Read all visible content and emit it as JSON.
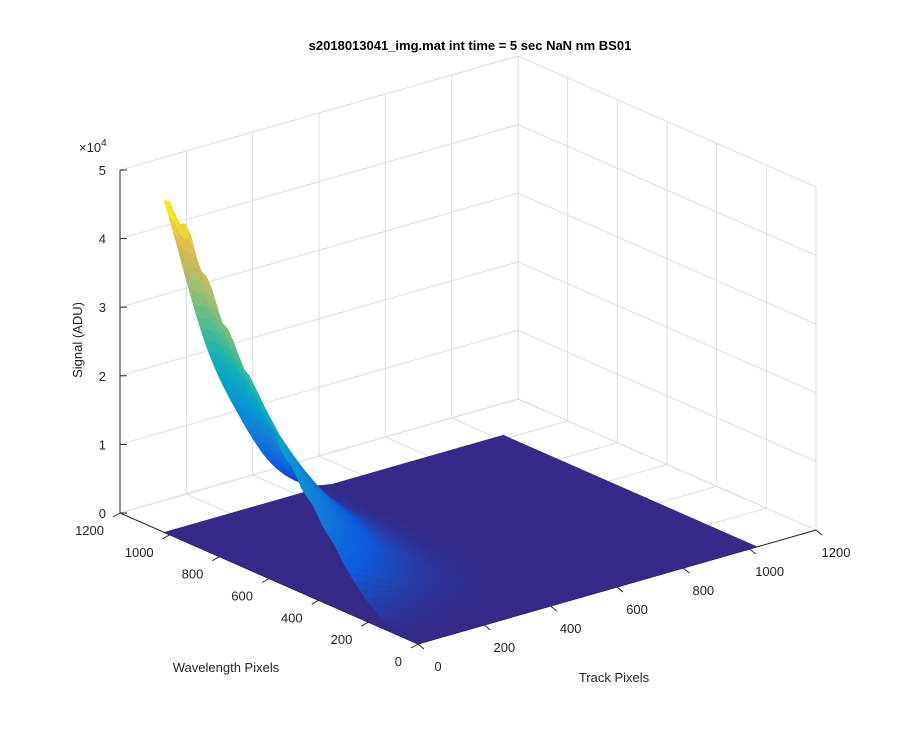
{
  "chart_data": {
    "type": "surface3d",
    "title": "s2018013041_img.mat int time = 5 sec  NaN nm BS01",
    "xlabel": "Track Pixels",
    "ylabel": "Wavelength Pixels",
    "zlabel": "Signal (ADU)",
    "z_exponent_label": "×10",
    "z_exponent": "4",
    "xlim": [
      0,
      1200
    ],
    "ylim": [
      0,
      1200
    ],
    "zlim": [
      0,
      50000
    ],
    "x_ticks": [
      0,
      200,
      400,
      600,
      800,
      1000,
      1200
    ],
    "y_ticks": [
      0,
      200,
      400,
      600,
      800,
      1000,
      1200
    ],
    "z_ticks": [
      0,
      1,
      2,
      3,
      4,
      5
    ],
    "x_tick_labels": [
      "0",
      "200",
      "400",
      "600",
      "800",
      "1000",
      "1200"
    ],
    "y_tick_labels": [
      "0",
      "200",
      "400",
      "600",
      "800",
      "1000",
      "1200"
    ],
    "z_tick_labels": [
      "0",
      "1",
      "2",
      "3",
      "4",
      "5"
    ],
    "data_extent": {
      "x": [
        1,
        1024
      ],
      "y": [
        1,
        1024
      ]
    },
    "grid": true,
    "colormap": "parula",
    "floor_color": "#352A87",
    "peak_profile": {
      "description_units": "signal in ADU along the ridge at the track-pixel edge",
      "y": [
        1024,
        980,
        940,
        900,
        860,
        820,
        780,
        740,
        700,
        660,
        620,
        580,
        540,
        500,
        460,
        420,
        380,
        340,
        300,
        260,
        220,
        180,
        140,
        100,
        60,
        20
      ],
      "z": [
        48000,
        47500,
        46000,
        43000,
        40000,
        37000,
        34000,
        31500,
        29000,
        26500,
        24000,
        21500,
        19000,
        17000,
        15000,
        13000,
        11000,
        9000,
        7000,
        5000,
        3500,
        2200,
        1200,
        500,
        150,
        0
      ]
    },
    "track_decay_pixels": 520
  }
}
